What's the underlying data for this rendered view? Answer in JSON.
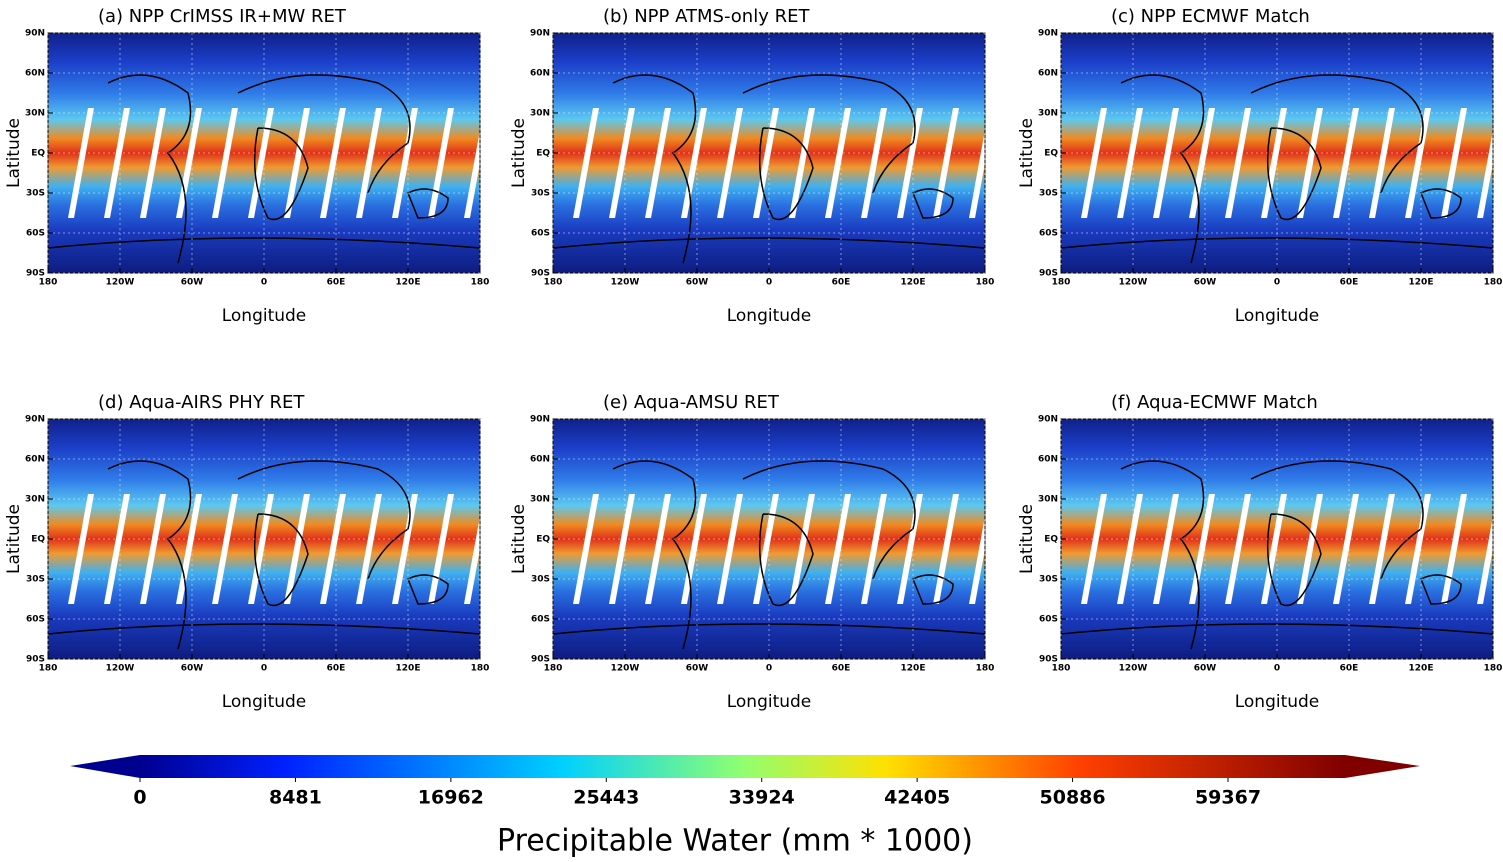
{
  "panels": [
    {
      "title": "(a) NPP CrIMSS IR+MW RET"
    },
    {
      "title": "(b) NPP ATMS-only RET"
    },
    {
      "title": "(c) NPP ECMWF Match"
    },
    {
      "title": "(d) Aqua-AIRS PHY RET"
    },
    {
      "title": "(e) Aqua-AMSU RET"
    },
    {
      "title": "(f) Aqua-ECMWF Match"
    }
  ],
  "axes": {
    "xlabel": "Longitude",
    "ylabel": "Latitude",
    "xlim": [
      -180,
      180
    ],
    "ylim": [
      -90,
      90
    ],
    "xticks": [
      {
        "value": -180,
        "label": "180"
      },
      {
        "value": -120,
        "label": "120W"
      },
      {
        "value": -60,
        "label": "60W"
      },
      0,
      {
        "value": 60,
        "label": "60E"
      },
      {
        "value": 120,
        "label": "120E"
      },
      {
        "value": 180,
        "label": "180"
      }
    ],
    "yticks": [
      {
        "value": 90,
        "label": "90N"
      },
      {
        "value": 60,
        "label": "60N"
      },
      {
        "value": 30,
        "label": "30N"
      },
      {
        "value": 0,
        "label": "EQ"
      },
      {
        "value": -30,
        "label": "30S"
      },
      {
        "value": -60,
        "label": "60S"
      },
      {
        "value": -90,
        "label": "90S"
      }
    ]
  },
  "colorbar": {
    "label": "Precipitable Water (mm * 1000)",
    "ticks": [
      0,
      8481,
      16962,
      25443,
      33924,
      42405,
      50886,
      59367
    ]
  }
}
